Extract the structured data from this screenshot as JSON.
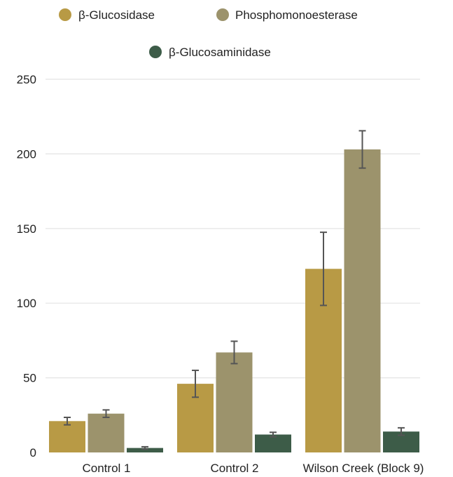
{
  "chart_data": {
    "type": "bar",
    "categories": [
      "Control 1",
      "Control 2",
      "Wilson Creek (Block 9)"
    ],
    "series": [
      {
        "name": "β-Glucosidase",
        "color": "#b89a45",
        "values": [
          21,
          46,
          123
        ],
        "errors": [
          2.5,
          9,
          24.5
        ]
      },
      {
        "name": "Phosphomonoesterase",
        "color": "#9c936c",
        "values": [
          26,
          67,
          203
        ],
        "errors": [
          2.5,
          7.5,
          12.5
        ]
      },
      {
        "name": "β-Glucosaminidase",
        "color": "#3d5c48",
        "values": [
          3,
          12,
          14
        ],
        "errors": [
          0.8,
          1.5,
          2.5
        ]
      }
    ],
    "yticks": [
      0,
      50,
      100,
      150,
      200,
      250
    ],
    "ylim": [
      0,
      250
    ],
    "grid": true,
    "legend": "top"
  }
}
